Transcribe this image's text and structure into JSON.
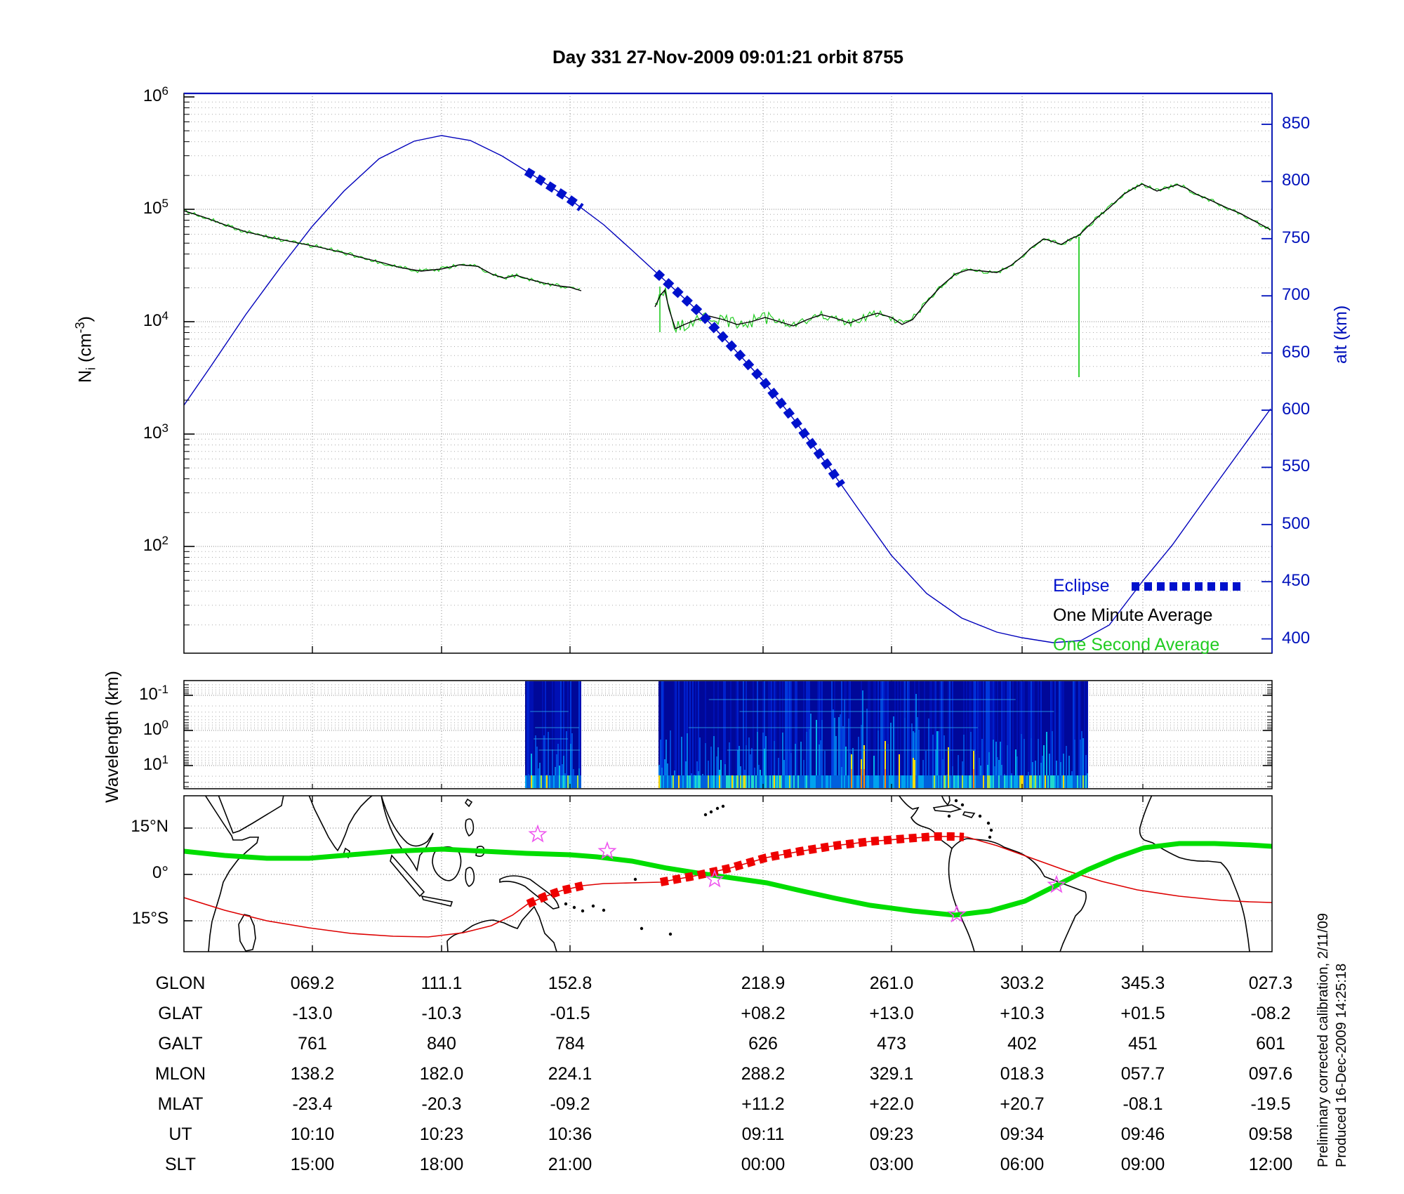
{
  "title": "Day 331  27-Nov-2009 09:01:21   orbit 8755",
  "colors": {
    "axis_blue": "#0011bb",
    "altitude_line_blue": "#0000bb",
    "eclipse_blue": "#0011cc",
    "one_minute_black": "#000000",
    "one_second_green": "#22cc22",
    "track_green": "#00dd00",
    "track_red": "#dd0000",
    "star_magenta": "#ee55ee"
  },
  "top_panel": {
    "y_left_label": {
      "sym": "N",
      "sub": "i",
      "unit_open": " (cm",
      "unit_exp": "-3",
      "unit_close": ")"
    },
    "left_ticks": [
      {
        "base": "10",
        "exp": "6"
      },
      {
        "base": "10",
        "exp": "5"
      },
      {
        "base": "10",
        "exp": "4"
      },
      {
        "base": "10",
        "exp": "3"
      },
      {
        "base": "10",
        "exp": "2"
      }
    ],
    "right_ticks": [
      "850",
      "800",
      "750",
      "700",
      "650",
      "600",
      "550",
      "500",
      "450",
      "400"
    ],
    "right_label": "alt (km)",
    "legend": [
      {
        "label": "Eclipse",
        "color": "#0011cc"
      },
      {
        "label": "One Minute Average",
        "color": "#000000"
      },
      {
        "label": "One Second Average",
        "color": "#22cc22"
      }
    ]
  },
  "mid_panel": {
    "y_label": "Wavelength (km)",
    "left_ticks": [
      {
        "base": "10",
        "exp": "-1"
      },
      {
        "base": "10",
        "exp": "0"
      },
      {
        "base": "10",
        "exp": "1"
      }
    ]
  },
  "map_panel": {
    "lat_ticks": [
      "15°N",
      "0°",
      "15°S"
    ]
  },
  "table": {
    "rows": [
      {
        "label": "GLON",
        "values": [
          "069.2",
          "111.1",
          "152.8",
          "218.9",
          "261.0",
          "303.2",
          "345.3",
          "027.3"
        ]
      },
      {
        "label": "GLAT",
        "values": [
          "-13.0",
          "-10.3",
          "-01.5",
          "+08.2",
          "+13.0",
          "+10.3",
          "+01.5",
          "-08.2"
        ]
      },
      {
        "label": "GALT",
        "values": [
          "761",
          "840",
          "784",
          "626",
          "473",
          "402",
          "451",
          "601"
        ]
      },
      {
        "label": "MLON",
        "values": [
          "138.2",
          "182.0",
          "224.1",
          "288.2",
          "329.1",
          "018.3",
          "057.7",
          "097.6"
        ]
      },
      {
        "label": "MLAT",
        "values": [
          "-23.4",
          "-20.3",
          "-09.2",
          "+11.2",
          "+22.0",
          "+20.7",
          "-08.1",
          "-19.5"
        ]
      },
      {
        "label": "UT",
        "values": [
          "10:10",
          "10:23",
          "10:36",
          "09:11",
          "09:23",
          "09:34",
          "09:46",
          "09:58"
        ]
      },
      {
        "label": "SLT",
        "values": [
          "15:00",
          "18:00",
          "21:00",
          "00:00",
          "03:00",
          "06:00",
          "09:00",
          "12:00"
        ]
      }
    ]
  },
  "side_notes": [
    "Preliminary corrected calibration, 2/11/09",
    "Produced 16-Dec-2009 14:25:18"
  ],
  "chart_data": [
    {
      "id": "ion_density_and_altitude",
      "type": "line",
      "title": "Day 331 27-Nov-2009 09:01:21 orbit 8755",
      "ylabel_left": "Ni (cm-3)",
      "yscale_left": "log",
      "ylim_left_ticks": [
        100,
        1000,
        10000,
        100000,
        1000000
      ],
      "ylabel_right": "alt (km)",
      "ylim_right": [
        400,
        850
      ],
      "legend_entries": [
        "Eclipse",
        "One Minute Average",
        "One Second Average"
      ],
      "series": [
        {
          "name": "altitude",
          "axis": "right",
          "color": "blue",
          "style": "thin line",
          "x_slt": [
            "15:00",
            "18:00",
            "21:00",
            "00:00",
            "03:00",
            "06:00",
            "09:00",
            "12:00"
          ],
          "values_km": [
            761,
            840,
            784,
            626,
            473,
            402,
            451,
            601
          ]
        },
        {
          "name": "One Minute Average",
          "axis": "left",
          "color": "black",
          "approx_values_cm3": {
            "start": 100000,
            "before_gap": 20000,
            "mid_orbit": 10000,
            "late_peak": 170000,
            "end": 65000
          }
        },
        {
          "name": "One Second Average",
          "axis": "left",
          "color": "green",
          "note": "noisy overlay of the one-minute average; deep narrow dropout spike near SLT 06:00"
        },
        {
          "name": "Eclipse",
          "axis": "right",
          "color": "blue",
          "style": "thick square dashes on altitude curve",
          "segments_fraction_of_x_axis": [
            [
              0.315,
              0.366
            ],
            [
              0.434,
              0.605
            ]
          ]
        }
      ],
      "data_gap_fraction_of_x_axis": [
        0.366,
        0.433
      ]
    },
    {
      "id": "wavelength_spectrogram",
      "type": "heatmap",
      "ylabel": "Wavelength (km)",
      "yscale": "log, inverted (0.1 top to 10 bottom)",
      "yticks": [
        0.1,
        1,
        10
      ],
      "data_blocks_fraction_of_x_axis": [
        [
          0.314,
          0.365
        ],
        [
          0.437,
          0.831
        ]
      ],
      "description": "dark blue background, vertical turbulence streaks; intensity increases toward long wavelengths with cyan/green/yellow/orange streaks at bottom"
    },
    {
      "id": "ground_track_map",
      "type": "map",
      "lat_ticks_deg": [
        15,
        0,
        -15
      ],
      "lat_range_deg": [
        -26,
        26
      ],
      "lon_range_deg_east": [
        27,
        387
      ],
      "series": [
        {
          "name": "thick green wavy track (magnetic equator)",
          "color": "green",
          "dips_south_over": "South America"
        },
        {
          "name": "thin red orbit ground track",
          "color": "red",
          "lat_extremes_deg": [
            -20,
            13
          ]
        },
        {
          "name": "red thick dashes (eclipse portion of track)",
          "color": "red",
          "segments": 2
        },
        {
          "name": "station stars",
          "marker": "open star",
          "color": "magenta",
          "count": 5
        }
      ]
    },
    {
      "id": "ephemeris_table",
      "type": "table",
      "rows": {
        "GLON": [
          "069.2",
          "111.1",
          "152.8",
          "218.9",
          "261.0",
          "303.2",
          "345.3",
          "027.3"
        ],
        "GLAT": [
          "-13.0",
          "-10.3",
          "-01.5",
          "+08.2",
          "+13.0",
          "+10.3",
          "+01.5",
          "-08.2"
        ],
        "GALT": [
          "761",
          "840",
          "784",
          "626",
          "473",
          "402",
          "451",
          "601"
        ],
        "MLON": [
          "138.2",
          "182.0",
          "224.1",
          "288.2",
          "329.1",
          "018.3",
          "057.7",
          "097.6"
        ],
        "MLAT": [
          "-23.4",
          "-20.3",
          "-09.2",
          "+11.2",
          "+22.0",
          "+20.7",
          "-08.1",
          "-19.5"
        ],
        "UT": [
          "10:10",
          "10:23",
          "10:36",
          "09:11",
          "09:23",
          "09:34",
          "09:46",
          "09:58"
        ],
        "SLT": [
          "15:00",
          "18:00",
          "21:00",
          "00:00",
          "03:00",
          "06:00",
          "09:00",
          "12:00"
        ]
      }
    }
  ]
}
